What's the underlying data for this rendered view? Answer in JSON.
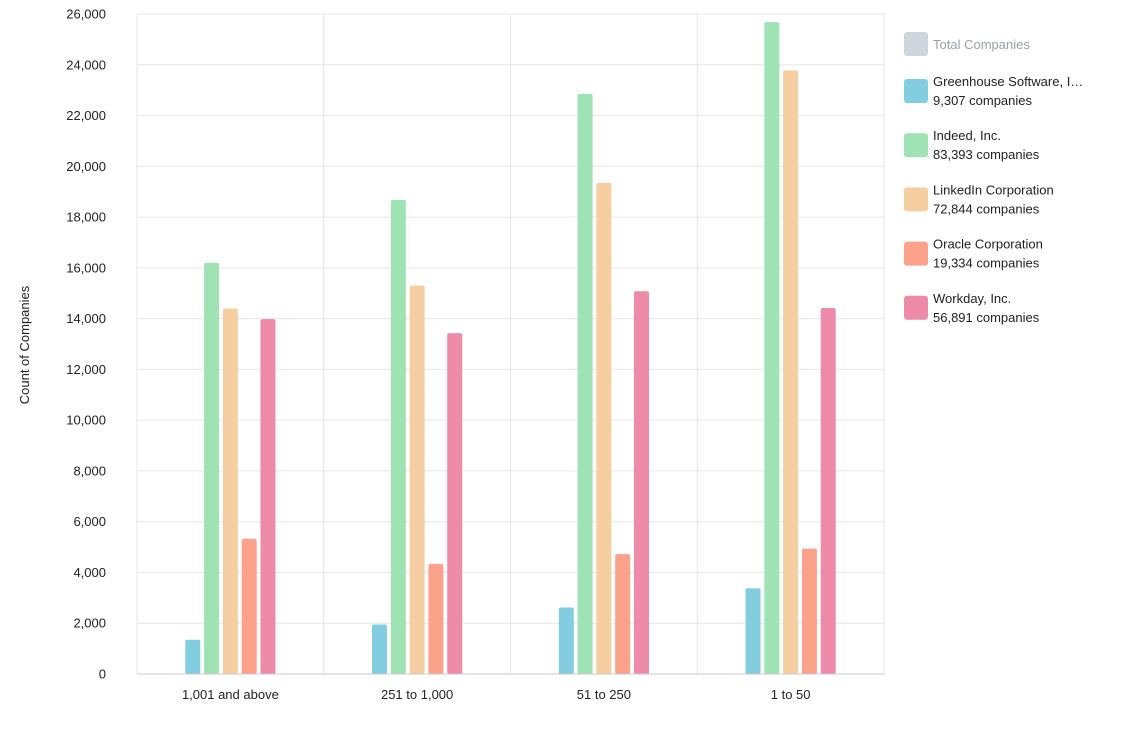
{
  "chart_data": {
    "type": "bar",
    "title": "",
    "xlabel": "",
    "ylabel": "Count of Companies",
    "ylim": [
      0,
      26000
    ],
    "yticks": [
      0,
      2000,
      4000,
      6000,
      8000,
      10000,
      12000,
      14000,
      16000,
      18000,
      20000,
      22000,
      24000,
      26000
    ],
    "ytick_labels": [
      "0",
      "2,000",
      "4,000",
      "6,000",
      "8,000",
      "10,000",
      "12,000",
      "14,000",
      "16,000",
      "18,000",
      "20,000",
      "22,000",
      "24,000",
      "26,000"
    ],
    "categories": [
      "1,001 and above",
      "251 to 1,000",
      "51 to 250",
      "1 to 50"
    ],
    "grid": true,
    "legend_position": "right",
    "legend_total_label": "Total Companies",
    "legend_total_color": "#cfd6de",
    "series": [
      {
        "name": "Greenhouse Software, I…",
        "count_label": "9,307 companies",
        "color": "#82cde0",
        "values": [
          1350,
          1950,
          2620,
          3380
        ]
      },
      {
        "name": "Indeed, Inc.",
        "count_label": "83,393 companies",
        "color": "#9fe2b4",
        "values": [
          16200,
          18680,
          22850,
          25680
        ]
      },
      {
        "name": "LinkedIn Corporation",
        "count_label": "72,844 companies",
        "color": "#f5cfa1",
        "values": [
          14400,
          15300,
          19350,
          23780
        ]
      },
      {
        "name": "Oracle Corporation",
        "count_label": "19,334 companies",
        "color": "#fca18a",
        "values": [
          5330,
          4340,
          4720,
          4940
        ]
      },
      {
        "name": "Workday, Inc.",
        "count_label": "56,891 companies",
        "color": "#ee8ba9",
        "values": [
          13980,
          13430,
          15080,
          14420
        ]
      }
    ]
  }
}
